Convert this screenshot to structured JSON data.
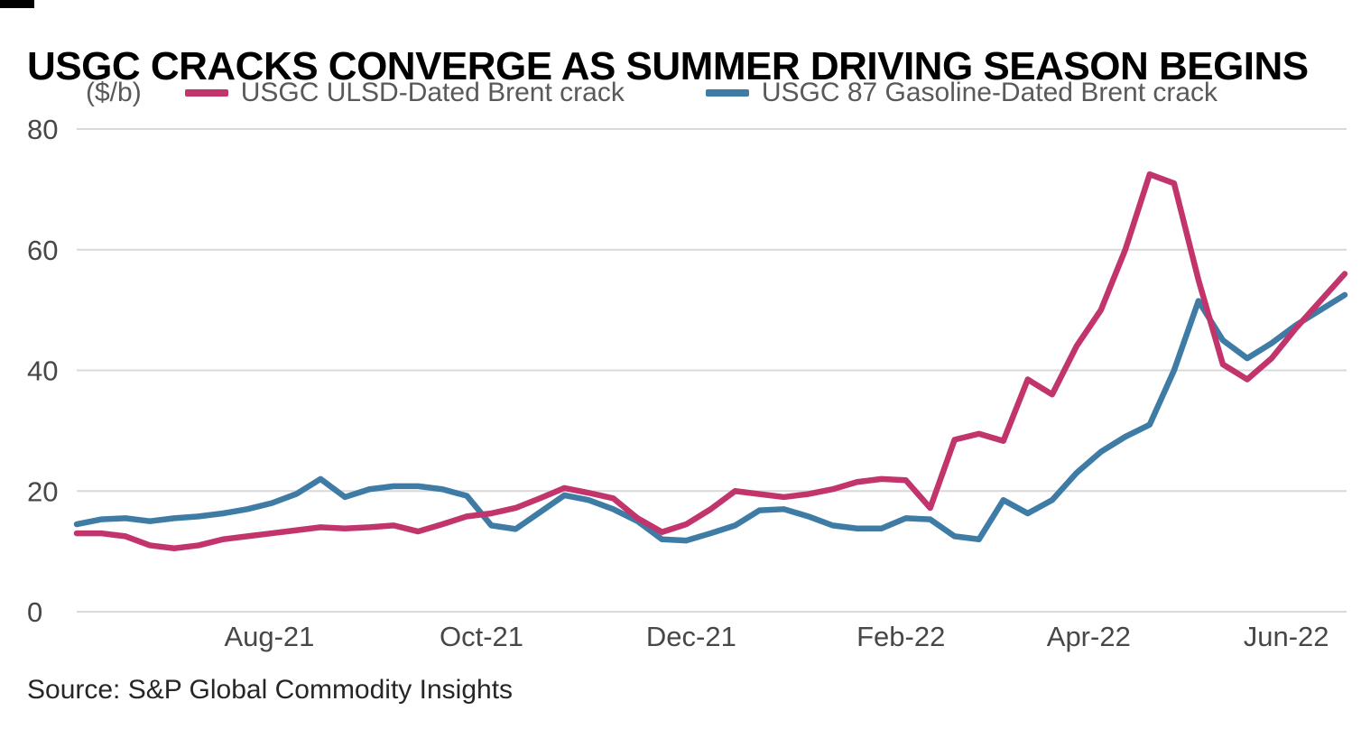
{
  "header": {
    "title": "USGC CRACKS CONVERGE AS SUMMER DRIVING SEASON BEGINS"
  },
  "footer": {
    "source": "Source: S&P Global Commodity Insights"
  },
  "chart_data": {
    "type": "line",
    "title": "USGC CRACKS CONVERGE AS SUMMER DRIVING SEASON BEGINS",
    "unit_label": "($/b)",
    "ylabel": "($/b)",
    "ylim": [
      0,
      80
    ],
    "y_ticks": [
      0,
      20,
      40,
      60,
      80
    ],
    "grid": "horizontal",
    "legend_position": "top",
    "x_unit": "weekly, Jun-2021 to Jun-2022",
    "x_ticks": [
      {
        "label": "Aug-21",
        "index": 7.9
      },
      {
        "label": "Oct-21",
        "index": 16.6
      },
      {
        "label": "Dec-21",
        "index": 25.2
      },
      {
        "label": "Feb-22",
        "index": 33.8
      },
      {
        "label": "Apr-22",
        "index": 41.5
      },
      {
        "label": "Jun-22",
        "index": 49.6
      }
    ],
    "series": [
      {
        "name": "USGC ULSD-Dated Brent crack",
        "color": "#c1356c",
        "values": [
          13,
          13,
          12.5,
          11,
          10.5,
          11,
          12,
          12.5,
          13,
          13.5,
          14,
          13.8,
          14,
          14.3,
          13.3,
          14.5,
          15.8,
          16.3,
          17.2,
          18.8,
          20.5,
          19.7,
          18.8,
          15.5,
          13.2,
          14.5,
          17,
          20,
          19.5,
          19,
          19.5,
          20.3,
          21.5,
          22,
          21.8,
          17.2,
          28.5,
          29.5,
          28.3,
          38.5,
          36,
          44,
          50,
          60,
          72.5,
          71,
          55,
          41,
          38.5,
          42,
          47,
          51.5,
          56
        ]
      },
      {
        "name": "USGC 87 Gasoline-Dated Brent crack",
        "color": "#3e7ca6",
        "values": [
          14.5,
          15.3,
          15.5,
          15,
          15.5,
          15.8,
          16.3,
          17,
          18,
          19.5,
          22,
          19,
          20.3,
          20.8,
          20.8,
          20.3,
          19.2,
          14.3,
          13.7,
          16.5,
          19.3,
          18.5,
          17,
          15,
          12,
          11.8,
          13,
          14.3,
          16.8,
          17,
          15.8,
          14.3,
          13.8,
          13.8,
          15.5,
          15.3,
          12.5,
          12,
          18.5,
          16.3,
          18.5,
          23,
          26.5,
          29,
          31,
          40,
          51.5,
          45,
          42,
          44.5,
          47.5,
          50,
          52.5
        ]
      }
    ]
  }
}
